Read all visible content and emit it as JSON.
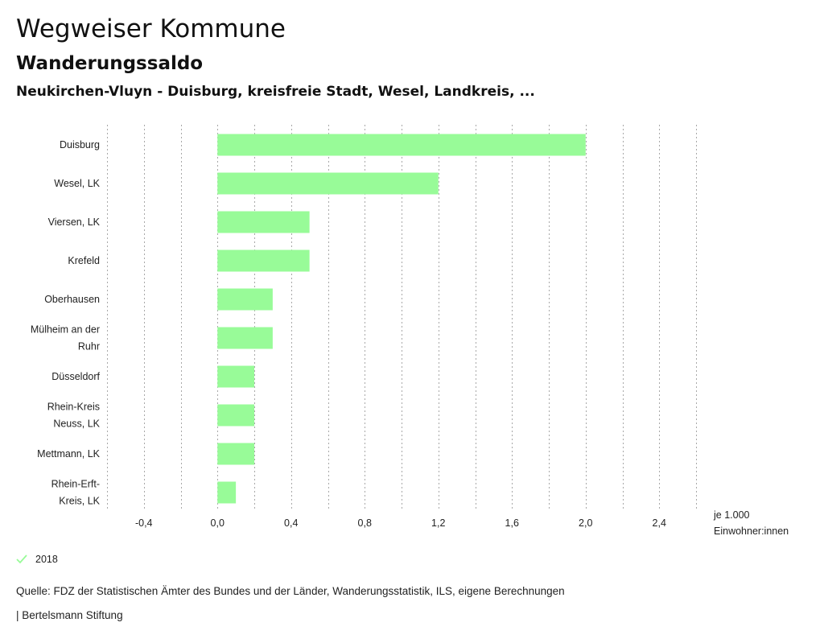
{
  "header": {
    "title": "Wegweiser Kommune",
    "subtitle": "Wanderungssaldo",
    "region": "Neukirchen-Vluyn - Duisburg, kreisfreie Stadt, Wesel, Landkreis, ..."
  },
  "chart_data": {
    "type": "bar",
    "orientation": "horizontal",
    "categories": [
      [
        "Duisburg"
      ],
      [
        "Wesel, LK"
      ],
      [
        "Viersen, LK"
      ],
      [
        "Krefeld"
      ],
      [
        "Oberhausen"
      ],
      [
        "Mülheim an der",
        "Ruhr"
      ],
      [
        "Düsseldorf"
      ],
      [
        "Rhein-Kreis",
        "Neuss, LK"
      ],
      [
        "Mettmann, LK"
      ],
      [
        "Rhein-Erft-",
        "Kreis, LK"
      ]
    ],
    "series": [
      {
        "name": "2018",
        "values": [
          2.0,
          1.2,
          0.5,
          0.5,
          0.3,
          0.3,
          0.2,
          0.2,
          0.2,
          0.1
        ]
      }
    ],
    "x_ticks": [
      "-0,4",
      "0,0",
      "0,4",
      "0,8",
      "1,2",
      "1,6",
      "2,0",
      "2,4"
    ],
    "x_tick_values": [
      -0.4,
      0.0,
      0.4,
      0.8,
      1.2,
      1.6,
      2.0,
      2.4
    ],
    "xlim": [
      -0.6,
      2.6
    ],
    "grid": "vertical-dotted",
    "bar_color": "#98fb98",
    "xlabel_lines": [
      "je 1.000",
      "Einwohner:innen"
    ],
    "legend_position": "bottom-left"
  },
  "footer": {
    "source": "Quelle: FDZ der Statistischen Ämter des Bundes und der Länder, Wanderungsstatistik, ILS, eigene Berechnungen",
    "brand": "| Bertelsmann Stiftung"
  }
}
